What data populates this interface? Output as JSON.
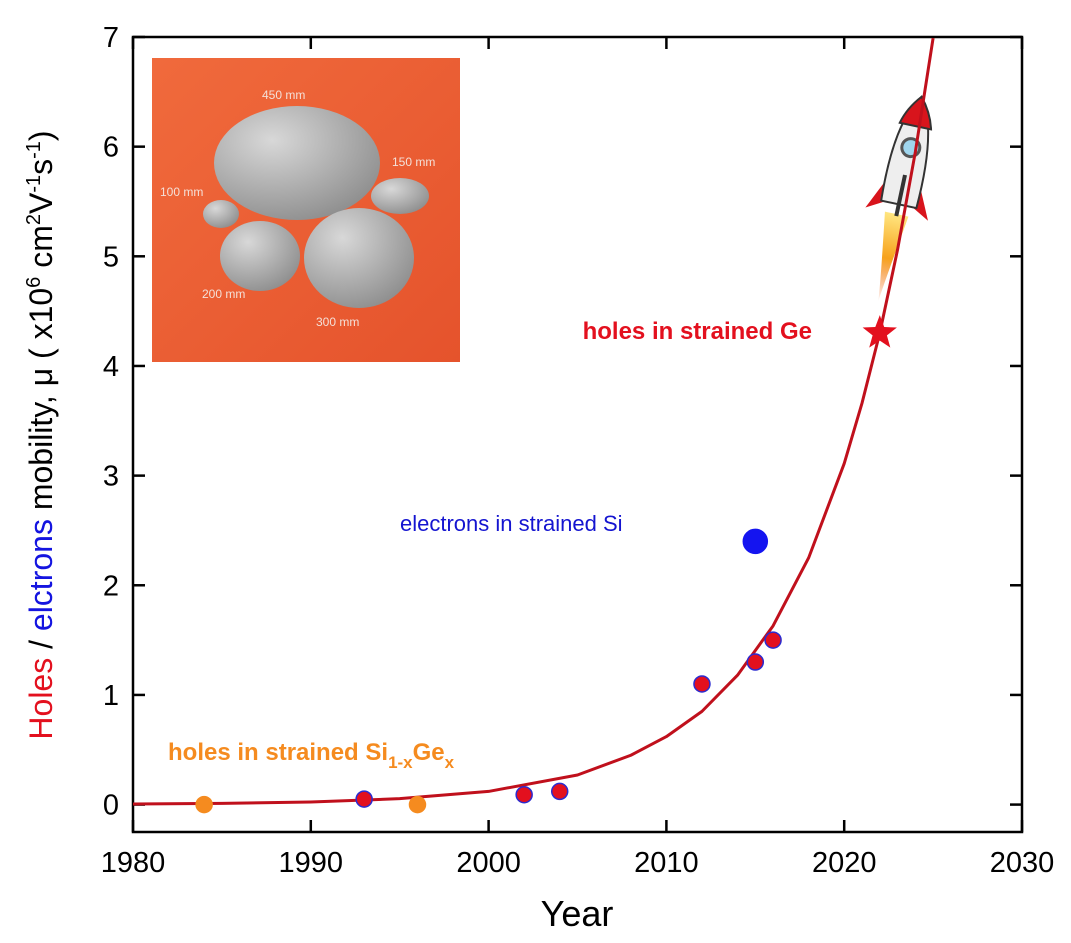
{
  "chart_data": {
    "type": "scatter",
    "xlabel": "Year",
    "ylabel_parts": [
      "Holes",
      " / ",
      "elctrons",
      " mobility, μ ( x10",
      "6",
      " cm",
      "2",
      "V",
      "-1",
      "s",
      "-1",
      ")"
    ],
    "xlim": [
      1980,
      2030
    ],
    "xticks": [
      1980,
      1990,
      2000,
      2010,
      2020,
      2030
    ],
    "ylim": [
      -0.25,
      7
    ],
    "yticks": [
      0,
      1,
      2,
      3,
      4,
      5,
      6,
      7
    ],
    "annotations": {
      "ge": "holes in strained Ge",
      "si": "electrons in strained Si",
      "sige_parts": [
        "holes in strained Si",
        "1-x",
        "Ge",
        "x"
      ]
    },
    "inset_labels": [
      "450 mm",
      "150 mm",
      "100 mm",
      "200 mm",
      "300 mm"
    ],
    "series": [
      {
        "marker": "circle",
        "color": "#f58b1f",
        "x": [
          1984,
          1996
        ],
        "values": [
          0,
          0
        ]
      },
      {
        "marker": "circle",
        "color": "#e3101e",
        "edgecolor": "#2b2bd0",
        "x": [
          1993,
          2002,
          2004,
          2012,
          2015,
          2016
        ],
        "values": [
          0.05,
          0.09,
          0.12,
          1.1,
          1.3,
          1.5
        ]
      },
      {
        "marker": "circle",
        "color": "#1414f0",
        "x": [
          2015
        ],
        "values": [
          2.4
        ]
      },
      {
        "marker": "star",
        "color": "#e3101e",
        "x": [
          2022
        ],
        "values": [
          4.3
        ]
      },
      {
        "marker": "line",
        "color": "#c0101c",
        "x": [
          1980,
          1985,
          1990,
          1995,
          2000,
          2005,
          2008,
          2010,
          2012,
          2014,
          2016,
          2018,
          2020,
          2021,
          2022,
          2023,
          2024,
          2025
        ],
        "values": [
          0.005,
          0.011,
          0.024,
          0.054,
          0.12,
          0.27,
          0.45,
          0.62,
          0.85,
          1.18,
          1.63,
          2.25,
          3.11,
          3.66,
          4.3,
          5.06,
          5.95,
          6.99
        ]
      }
    ]
  }
}
